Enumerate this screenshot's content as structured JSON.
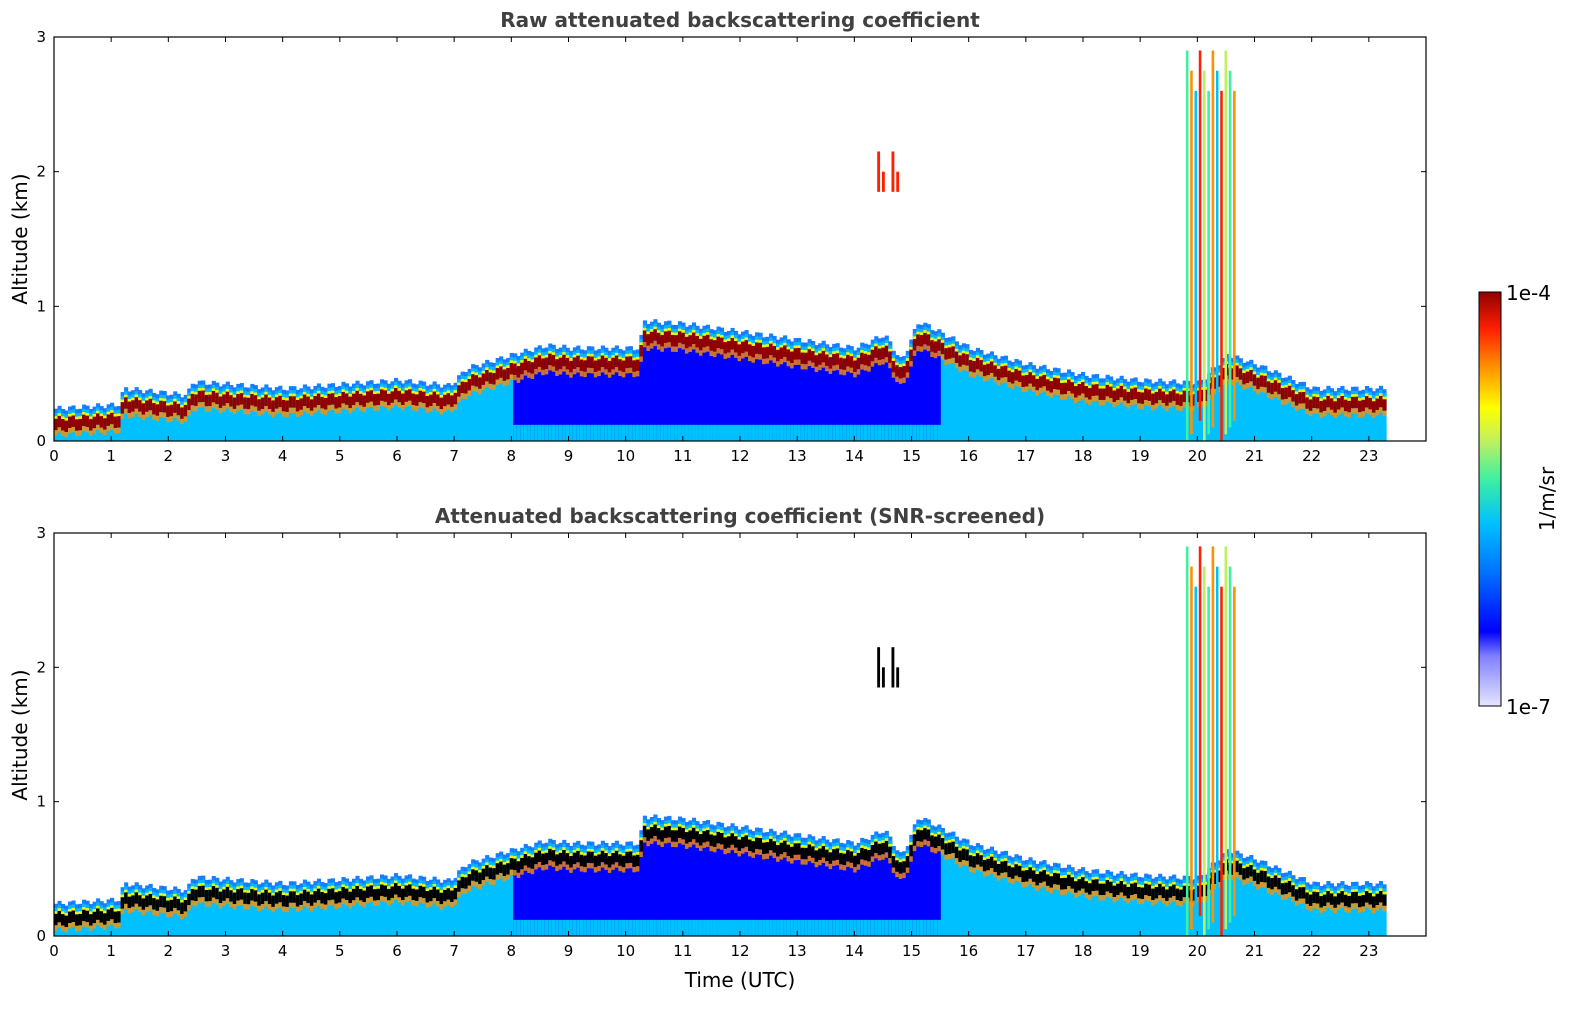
{
  "colors": {
    "scale": [
      "#ffffff",
      "#c8c8f0",
      "#0000ff",
      "#0070ff",
      "#00c0ff",
      "#40f0a0",
      "#c0f060",
      "#ffff00",
      "#ff9000",
      "#ff2000",
      "#900000"
    ],
    "boundary_core": "#900000",
    "boundary_core_screened": "#000000"
  },
  "charts": [
    {
      "type": "heatmap",
      "title": "Raw attenuated backscattering coefficient",
      "xlabel": "",
      "ylabel": "Altitude (km)",
      "xlim": [
        0,
        24
      ],
      "ylim": [
        0,
        3
      ],
      "xticks": [
        "0",
        "1",
        "2",
        "3",
        "4",
        "5",
        "6",
        "7",
        "8",
        "9",
        "10",
        "11",
        "12",
        "13",
        "14",
        "15",
        "16",
        "17",
        "18",
        "19",
        "20",
        "21",
        "22",
        "23"
      ],
      "yticks": [
        "0",
        "1",
        "2",
        "3"
      ],
      "screened": false
    },
    {
      "type": "heatmap",
      "title": "Attenuated backscattering coefficient (SNR-screened)",
      "xlabel": "Time (UTC)",
      "ylabel": "Altitude (km)",
      "xlim": [
        0,
        24
      ],
      "ylim": [
        0,
        3
      ],
      "xticks": [
        "0",
        "1",
        "2",
        "3",
        "4",
        "5",
        "6",
        "7",
        "8",
        "9",
        "10",
        "11",
        "12",
        "13",
        "14",
        "15",
        "16",
        "17",
        "18",
        "19",
        "20",
        "21",
        "22",
        "23"
      ],
      "yticks": [
        "0",
        "1",
        "2",
        "3"
      ],
      "screened": true
    }
  ],
  "colorbar": {
    "max_label": "1e-4",
    "min_label": "1e-7",
    "unit_label": "1/m/sr"
  },
  "chart_data": {
    "type": "heatmap",
    "x_unit": "hours UTC",
    "y_unit": "km",
    "data_end_time": 23.3,
    "boundary_layer_height": {
      "x": [
        0,
        1.1,
        1.2,
        2.3,
        2.4,
        4,
        6,
        6.9,
        7.2,
        8,
        8.6,
        9,
        10.2,
        10.3,
        11,
        12,
        13,
        14,
        14.5,
        14.8,
        15.1,
        16,
        17,
        18,
        19,
        20,
        20.5,
        21,
        22,
        23.3
      ],
      "y": [
        0.15,
        0.18,
        0.3,
        0.25,
        0.35,
        0.3,
        0.36,
        0.32,
        0.45,
        0.55,
        0.62,
        0.6,
        0.6,
        0.8,
        0.78,
        0.72,
        0.66,
        0.6,
        0.7,
        0.5,
        0.8,
        0.6,
        0.48,
        0.4,
        0.36,
        0.34,
        0.55,
        0.48,
        0.3,
        0.3
      ]
    },
    "aerosol_layer_top": {
      "x": [
        0,
        7,
        8,
        9,
        10,
        12,
        15,
        16,
        17,
        18,
        20,
        21,
        23.3
      ],
      "y": [
        0.2,
        0.3,
        0.55,
        0.6,
        0.62,
        0.6,
        0.55,
        0.45,
        0.3,
        0.25,
        0.25,
        0.2,
        0.2
      ]
    },
    "elevated_features": [
      {
        "x": [
          14.4,
          14.9
        ],
        "y": [
          1.85,
          2.15
        ]
      },
      {
        "x": [
          19.8,
          20.7
        ],
        "y": [
          0,
          2.9
        ]
      }
    ],
    "colorbar_range": [
      "1e-7",
      "1e-4"
    ]
  }
}
